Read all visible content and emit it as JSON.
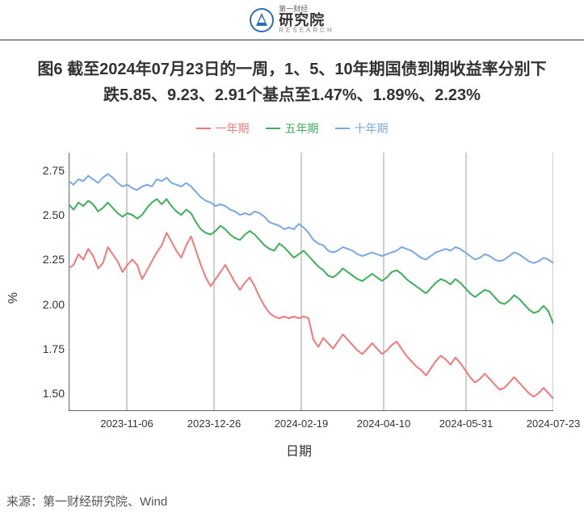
{
  "header": {
    "logo_cn": "研究院",
    "logo_sup": "第一财经",
    "logo_en": "RESEARCH"
  },
  "title": "图6 截至2024年07月23日的一周，1、5、10年期国债到期收益率分别下跌5.85、9.23、2.91个基点至1.47%、1.89%、2.23%",
  "chart": {
    "type": "line",
    "ylabel": "%",
    "xlabel": "日期",
    "ylim": [
      1.4,
      2.85
    ],
    "yticks": [
      1.5,
      1.75,
      2.0,
      2.25,
      2.5,
      2.75
    ],
    "ytick_labels": [
      "1.50",
      "1.75",
      "2.00",
      "2.25",
      "2.50",
      "2.75"
    ],
    "xtick_positions": [
      0.12,
      0.3,
      0.48,
      0.65,
      0.82,
      1.0
    ],
    "xtick_labels": [
      "2023-11-06",
      "2023-12-26",
      "2024-02-19",
      "2024-04-10",
      "2024-05-31",
      "2024-07-23"
    ],
    "grid_positions": [
      0.12,
      0.3,
      0.48,
      0.65,
      0.82,
      1.0
    ],
    "background_color": "#ffffff",
    "grid_color": "#bfbfbf",
    "axis_color": "#333333",
    "label_fontsize": 16,
    "tick_fontsize": 14,
    "line_width": 2,
    "legend": {
      "items": [
        {
          "label": "一年期",
          "color": "#f07a78"
        },
        {
          "label": "五年期",
          "color": "#3fae5a"
        },
        {
          "label": "十年期",
          "color": "#7aa8e0"
        }
      ]
    },
    "series": [
      {
        "name": "十年期",
        "color": "#7aa8e0",
        "values": [
          2.69,
          2.67,
          2.7,
          2.69,
          2.72,
          2.7,
          2.68,
          2.71,
          2.73,
          2.71,
          2.68,
          2.66,
          2.67,
          2.65,
          2.64,
          2.66,
          2.67,
          2.66,
          2.7,
          2.69,
          2.71,
          2.68,
          2.67,
          2.66,
          2.68,
          2.66,
          2.63,
          2.6,
          2.58,
          2.57,
          2.55,
          2.56,
          2.55,
          2.53,
          2.52,
          2.5,
          2.51,
          2.5,
          2.52,
          2.51,
          2.49,
          2.46,
          2.45,
          2.44,
          2.42,
          2.43,
          2.42,
          2.45,
          2.43,
          2.4,
          2.36,
          2.34,
          2.33,
          2.3,
          2.29,
          2.3,
          2.32,
          2.31,
          2.3,
          2.28,
          2.27,
          2.28,
          2.29,
          2.28,
          2.27,
          2.28,
          2.29,
          2.3,
          2.32,
          2.31,
          2.3,
          2.28,
          2.26,
          2.25,
          2.27,
          2.29,
          2.3,
          2.31,
          2.3,
          2.32,
          2.31,
          2.29,
          2.27,
          2.25,
          2.26,
          2.28,
          2.27,
          2.25,
          2.24,
          2.25,
          2.27,
          2.29,
          2.28,
          2.26,
          2.24,
          2.23,
          2.24,
          2.26,
          2.25,
          2.23
        ]
      },
      {
        "name": "五年期",
        "color": "#3fae5a",
        "values": [
          2.56,
          2.53,
          2.57,
          2.55,
          2.58,
          2.56,
          2.52,
          2.54,
          2.57,
          2.54,
          2.51,
          2.49,
          2.51,
          2.5,
          2.48,
          2.5,
          2.54,
          2.57,
          2.59,
          2.56,
          2.59,
          2.55,
          2.52,
          2.5,
          2.53,
          2.51,
          2.46,
          2.42,
          2.4,
          2.39,
          2.41,
          2.44,
          2.42,
          2.39,
          2.37,
          2.36,
          2.39,
          2.41,
          2.39,
          2.36,
          2.33,
          2.31,
          2.3,
          2.34,
          2.32,
          2.29,
          2.26,
          2.28,
          2.3,
          2.27,
          2.24,
          2.21,
          2.19,
          2.16,
          2.15,
          2.17,
          2.2,
          2.18,
          2.16,
          2.14,
          2.13,
          2.15,
          2.17,
          2.15,
          2.13,
          2.15,
          2.18,
          2.19,
          2.17,
          2.14,
          2.12,
          2.1,
          2.08,
          2.06,
          2.09,
          2.12,
          2.14,
          2.13,
          2.11,
          2.14,
          2.12,
          2.09,
          2.06,
          2.04,
          2.06,
          2.08,
          2.07,
          2.04,
          2.01,
          2.0,
          2.02,
          2.05,
          2.03,
          2.0,
          1.97,
          1.95,
          1.96,
          1.99,
          1.96,
          1.89
        ]
      },
      {
        "name": "一年期",
        "color": "#f07a78",
        "values": [
          2.2,
          2.22,
          2.28,
          2.25,
          2.31,
          2.27,
          2.2,
          2.23,
          2.32,
          2.28,
          2.24,
          2.18,
          2.22,
          2.25,
          2.22,
          2.14,
          2.19,
          2.24,
          2.29,
          2.33,
          2.4,
          2.35,
          2.3,
          2.26,
          2.33,
          2.38,
          2.3,
          2.22,
          2.15,
          2.1,
          2.14,
          2.18,
          2.22,
          2.17,
          2.12,
          2.08,
          2.12,
          2.15,
          2.1,
          2.04,
          1.99,
          1.95,
          1.93,
          1.92,
          1.93,
          1.92,
          1.93,
          1.92,
          1.93,
          1.92,
          1.8,
          1.76,
          1.81,
          1.78,
          1.75,
          1.79,
          1.83,
          1.8,
          1.77,
          1.74,
          1.72,
          1.75,
          1.78,
          1.75,
          1.72,
          1.74,
          1.77,
          1.79,
          1.75,
          1.71,
          1.68,
          1.65,
          1.63,
          1.6,
          1.64,
          1.68,
          1.71,
          1.69,
          1.66,
          1.7,
          1.67,
          1.63,
          1.59,
          1.56,
          1.58,
          1.61,
          1.58,
          1.55,
          1.52,
          1.53,
          1.56,
          1.59,
          1.56,
          1.53,
          1.5,
          1.48,
          1.5,
          1.53,
          1.5,
          1.47
        ]
      }
    ]
  },
  "source": "来源：第一财经研究院、Wind"
}
